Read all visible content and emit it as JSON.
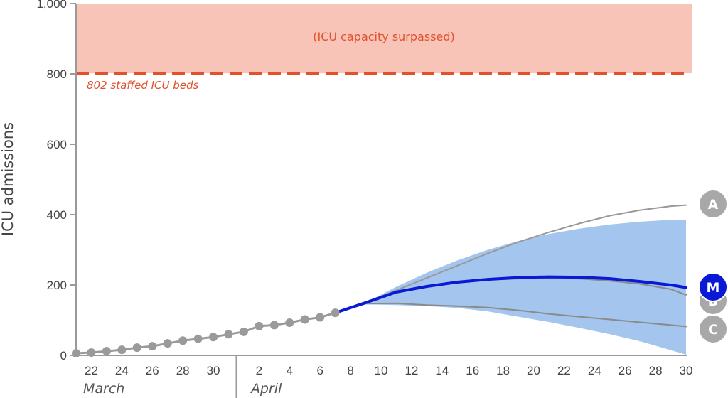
{
  "chart_data": {
    "type": "line",
    "ylabel": "ICU admissions",
    "ylim": [
      0,
      1000
    ],
    "y_ticks": [
      0,
      200,
      400,
      600,
      800,
      1000
    ],
    "y_tick_labels": [
      "0",
      "200",
      "400",
      "600",
      "800",
      "1,000"
    ],
    "x_ticks": [
      {
        "day": 22,
        "label": "22"
      },
      {
        "day": 24,
        "label": "24"
      },
      {
        "day": 26,
        "label": "26"
      },
      {
        "day": 28,
        "label": "28"
      },
      {
        "day": 30,
        "label": "30"
      },
      {
        "day": 33,
        "label": "2"
      },
      {
        "day": 35,
        "label": "4"
      },
      {
        "day": 37,
        "label": "6"
      },
      {
        "day": 39,
        "label": "8"
      },
      {
        "day": 41,
        "label": "10"
      },
      {
        "day": 43,
        "label": "12"
      },
      {
        "day": 45,
        "label": "14"
      },
      {
        "day": 47,
        "label": "16"
      },
      {
        "day": 49,
        "label": "18"
      },
      {
        "day": 51,
        "label": "20"
      },
      {
        "day": 53,
        "label": "22"
      },
      {
        "day": 55,
        "label": "24"
      },
      {
        "day": 57,
        "label": "26"
      },
      {
        "day": 59,
        "label": "28"
      },
      {
        "day": 61,
        "label": "30"
      }
    ],
    "months": [
      {
        "label": "March",
        "start_day": 21
      },
      {
        "label": "April",
        "start_day": 32
      }
    ],
    "capacity": {
      "value": 802,
      "label": "802 staffed ICU beds",
      "region_label": "(ICU capacity surpassed)",
      "color": "#e0522c",
      "region_color": "#f7c4b7"
    },
    "observed": {
      "color": "#9a9a9a",
      "points": [
        [
          21,
          6
        ],
        [
          22,
          8
        ],
        [
          23,
          12
        ],
        [
          24,
          16
        ],
        [
          25,
          22
        ],
        [
          26,
          26
        ],
        [
          27,
          34
        ],
        [
          28,
          42
        ],
        [
          29,
          47
        ],
        [
          30,
          52
        ],
        [
          31,
          60
        ],
        [
          32,
          67
        ],
        [
          33,
          83
        ],
        [
          34,
          86
        ],
        [
          35,
          93
        ],
        [
          36,
          102
        ],
        [
          37,
          108
        ],
        [
          38,
          121
        ]
      ]
    },
    "band": {
      "color": "#a3c5ee",
      "upper": [
        [
          38,
          121
        ],
        [
          40,
          150
        ],
        [
          42,
          195
        ],
        [
          44,
          235
        ],
        [
          46,
          270
        ],
        [
          48,
          300
        ],
        [
          50,
          325
        ],
        [
          52,
          345
        ],
        [
          54,
          360
        ],
        [
          56,
          372
        ],
        [
          58,
          380
        ],
        [
          60,
          385
        ],
        [
          61,
          386
        ]
      ],
      "lower": [
        [
          38,
          121
        ],
        [
          40,
          145
        ],
        [
          42,
          143
        ],
        [
          44,
          140
        ],
        [
          46,
          135
        ],
        [
          48,
          125
        ],
        [
          50,
          110
        ],
        [
          52,
          95
        ],
        [
          54,
          78
        ],
        [
          56,
          60
        ],
        [
          58,
          40
        ],
        [
          60,
          15
        ],
        [
          61,
          2
        ]
      ]
    },
    "series": [
      {
        "name": "A",
        "color": "#999999",
        "badge_color": "#a8a8a8",
        "points": [
          [
            38,
            121
          ],
          [
            40,
            150
          ],
          [
            42,
            185
          ],
          [
            44,
            220
          ],
          [
            46,
            255
          ],
          [
            48,
            290
          ],
          [
            50,
            322
          ],
          [
            52,
            350
          ],
          [
            54,
            375
          ],
          [
            56,
            397
          ],
          [
            58,
            413
          ],
          [
            60,
            424
          ],
          [
            61,
            427
          ]
        ]
      },
      {
        "name": "B",
        "color": "#8a8a8a",
        "badge_color": "#a8a8a8",
        "points": [
          [
            38,
            121
          ],
          [
            40,
            150
          ],
          [
            42,
            178
          ],
          [
            44,
            196
          ],
          [
            46,
            208
          ],
          [
            48,
            215
          ],
          [
            50,
            218
          ],
          [
            52,
            220
          ],
          [
            54,
            218
          ],
          [
            56,
            212
          ],
          [
            58,
            203
          ],
          [
            60,
            188
          ],
          [
            61,
            172
          ]
        ]
      },
      {
        "name": "C",
        "color": "#8a8a8a",
        "badge_color": "#a8a8a8",
        "points": [
          [
            38,
            121
          ],
          [
            40,
            147
          ],
          [
            42,
            148
          ],
          [
            44,
            143
          ],
          [
            46,
            140
          ],
          [
            48,
            136
          ],
          [
            50,
            128
          ],
          [
            52,
            118
          ],
          [
            54,
            110
          ],
          [
            56,
            102
          ],
          [
            58,
            94
          ],
          [
            60,
            86
          ],
          [
            61,
            82
          ]
        ]
      },
      {
        "name": "M",
        "color": "#0a19d6",
        "badge_color": "#0a19d6",
        "points": [
          [
            38,
            121
          ],
          [
            40,
            150
          ],
          [
            42,
            180
          ],
          [
            44,
            196
          ],
          [
            46,
            208
          ],
          [
            48,
            216
          ],
          [
            50,
            221
          ],
          [
            52,
            223
          ],
          [
            54,
            222
          ],
          [
            56,
            218
          ],
          [
            58,
            210
          ],
          [
            60,
            200
          ],
          [
            61,
            193
          ]
        ]
      }
    ]
  }
}
